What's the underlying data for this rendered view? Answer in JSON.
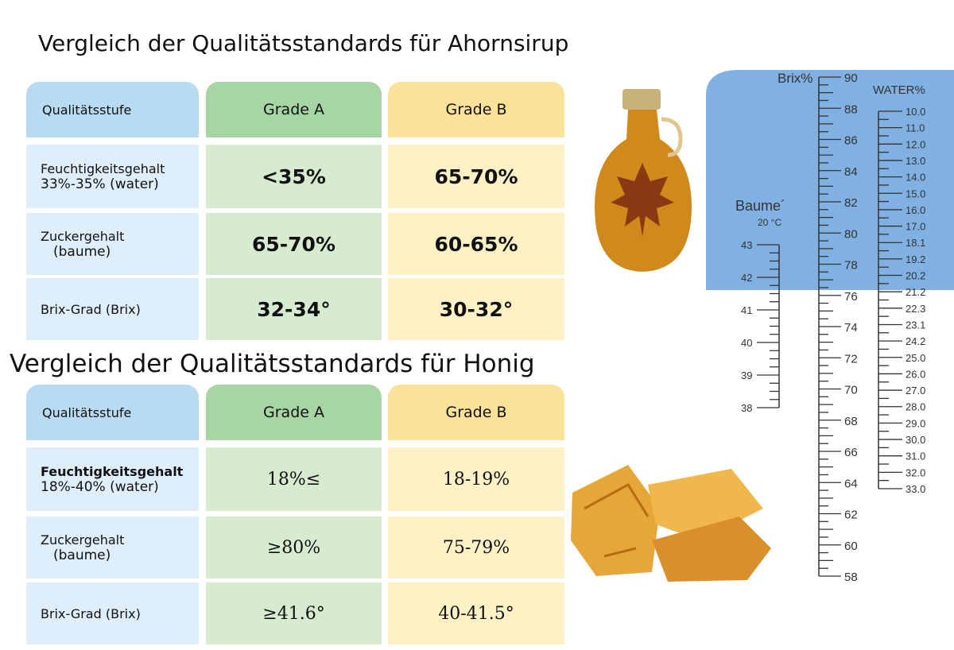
{
  "tables": [
    {
      "title": "Vergleich der Qualitätsstandards für Ahornsirup",
      "header": [
        "Qualitätsstufe",
        "Grade A",
        "Grade B"
      ],
      "rows": [
        [
          [
            "Feuchtigkeitsgehalt",
            "33%-35% (water)"
          ],
          "<35%",
          "65-70%"
        ],
        [
          [
            "Zuckergehalt",
            "(baume)"
          ],
          "65-70%",
          "60-65%"
        ],
        [
          [
            "Brix-Grad (Brix)"
          ],
          "32-34°",
          "30-32°"
        ]
      ]
    },
    {
      "title": "Vergleich der Qualitätsstandards für Honig",
      "header": [
        "Qualitätsstufe",
        "Grade A",
        "Grade B"
      ],
      "rows": [
        [
          [
            "Feuchtigkeitsgehalt",
            "18%-40% (water)"
          ],
          "18%≤",
          "18-19%"
        ],
        [
          [
            "Zuckergehalt",
            "(baume)"
          ],
          "≥80%",
          "75-79%"
        ],
        [
          [
            "Brix-Grad (Brix)"
          ],
          "≥41.6°",
          "40-41.5°"
        ]
      ]
    }
  ],
  "scale": {
    "brix_label": "Brix%",
    "brix": [
      "90",
      "88",
      "86",
      "84",
      "82",
      "80",
      "78",
      "76",
      "74",
      "72",
      "70",
      "68",
      "66",
      "64",
      "62",
      "60",
      "58"
    ],
    "baume_label": "Baume´",
    "baume_temp": "20 °C",
    "baume": [
      "43",
      "42",
      "41",
      "40",
      "39",
      "38"
    ],
    "water_label": "WATER%",
    "water": [
      "10.0",
      "11.0",
      "12.0",
      "13.0",
      "14.0",
      "15.0",
      "16.0",
      "17.0",
      "18.1",
      "19.2",
      "20.2",
      "21.2",
      "22.3",
      "23.1",
      "24.2",
      "25.0",
      "26.0",
      "27.0",
      "28.0",
      "29.0",
      "30.0",
      "31.0",
      "32.0",
      "33.0"
    ]
  }
}
